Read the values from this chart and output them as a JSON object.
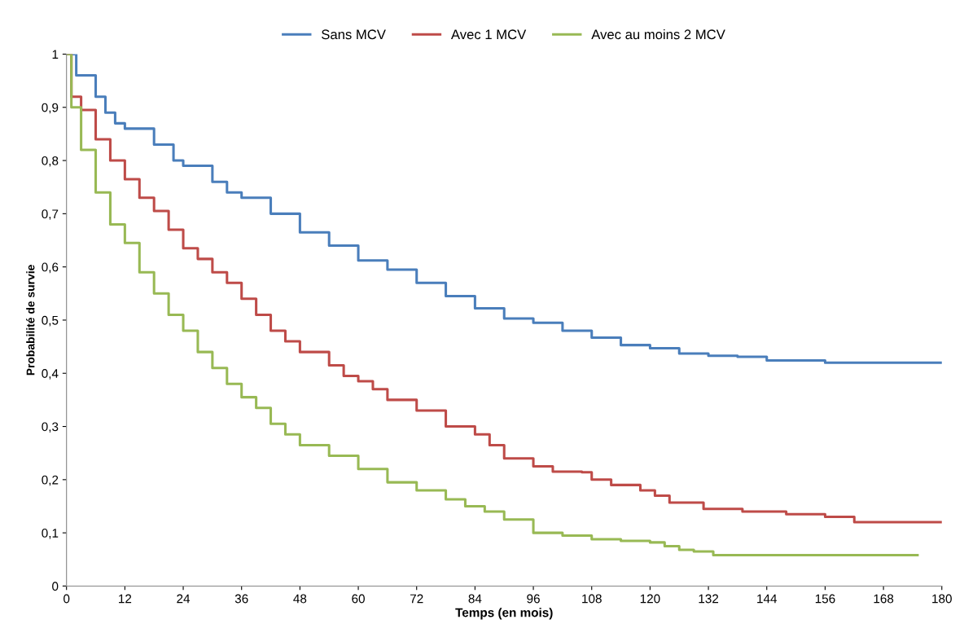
{
  "chart_data": {
    "type": "step",
    "xlabel": "Temps (en mois)",
    "ylabel": "Probabilité de survie",
    "legend": "top",
    "grid": false,
    "marker": "none",
    "line_style": "solid",
    "xlim": [
      0,
      180
    ],
    "xticks": [
      0,
      12,
      24,
      36,
      48,
      60,
      72,
      84,
      96,
      108,
      120,
      132,
      144,
      156,
      168,
      180
    ],
    "ylim": [
      0,
      1
    ],
    "yticks": [
      0,
      {
        "value": 0.1,
        "label": "0,1"
      },
      {
        "value": 0.2,
        "label": "0,2"
      },
      {
        "value": 0.3,
        "label": "0,3"
      },
      {
        "value": 0.4,
        "label": "0,4"
      },
      {
        "value": 0.5,
        "label": "0,5"
      },
      {
        "value": 0.6,
        "label": "0,6"
      },
      {
        "value": 0.7,
        "label": "0,7"
      },
      {
        "value": 0.8,
        "label": "0,8"
      },
      {
        "value": 0.9,
        "label": "0,9"
      },
      1
    ],
    "series": [
      {
        "name": "Sans MCV",
        "color": "#4a7ebb",
        "x": [
          0,
          2,
          6,
          8,
          10,
          12,
          18,
          22,
          24,
          30,
          33,
          36,
          42,
          48,
          54,
          60,
          66,
          72,
          78,
          84,
          90,
          96,
          102,
          108,
          114,
          120,
          126,
          132,
          138,
          144,
          156,
          180
        ],
        "values": [
          1.0,
          0.96,
          0.92,
          0.89,
          0.87,
          0.86,
          0.83,
          0.8,
          0.79,
          0.76,
          0.74,
          0.73,
          0.7,
          0.665,
          0.64,
          0.612,
          0.595,
          0.57,
          0.545,
          0.522,
          0.503,
          0.495,
          0.48,
          0.467,
          0.453,
          0.447,
          0.437,
          0.433,
          0.431,
          0.424,
          0.42,
          0.42
        ]
      },
      {
        "name": "Avec 1 MCV",
        "color": "#be4b48",
        "x": [
          0,
          1,
          3,
          6,
          9,
          12,
          15,
          18,
          21,
          24,
          27,
          30,
          33,
          36,
          39,
          42,
          45,
          48,
          54,
          57,
          60,
          63,
          66,
          72,
          78,
          84,
          87,
          90,
          96,
          100,
          106,
          108,
          112,
          118,
          121,
          124,
          131,
          139,
          148,
          156,
          162,
          180
        ],
        "values": [
          1.0,
          0.92,
          0.895,
          0.84,
          0.8,
          0.765,
          0.73,
          0.705,
          0.67,
          0.635,
          0.615,
          0.59,
          0.57,
          0.54,
          0.51,
          0.48,
          0.46,
          0.44,
          0.415,
          0.395,
          0.385,
          0.37,
          0.35,
          0.33,
          0.3,
          0.285,
          0.265,
          0.24,
          0.225,
          0.215,
          0.214,
          0.2,
          0.19,
          0.18,
          0.17,
          0.157,
          0.145,
          0.14,
          0.135,
          0.13,
          0.12,
          0.12
        ]
      },
      {
        "name": "Avec au moins 2 MCV",
        "color": "#98b954",
        "x": [
          0,
          1,
          3,
          6,
          9,
          12,
          15,
          18,
          21,
          24,
          27,
          30,
          33,
          36,
          39,
          42,
          45,
          48,
          54,
          60,
          66,
          72,
          78,
          82,
          86,
          90,
          96,
          102,
          108,
          114,
          120,
          123,
          126,
          129,
          133,
          175
        ],
        "values": [
          1.0,
          0.9,
          0.82,
          0.74,
          0.68,
          0.645,
          0.59,
          0.55,
          0.51,
          0.48,
          0.44,
          0.41,
          0.38,
          0.355,
          0.335,
          0.305,
          0.285,
          0.265,
          0.245,
          0.22,
          0.195,
          0.18,
          0.163,
          0.15,
          0.14,
          0.125,
          0.1,
          0.095,
          0.088,
          0.085,
          0.082,
          0.075,
          0.068,
          0.065,
          0.058,
          0.058
        ]
      }
    ]
  }
}
